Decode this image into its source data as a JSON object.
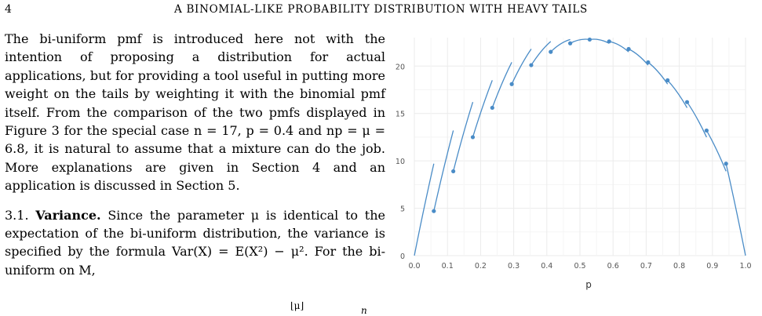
{
  "header": {
    "page_number": "4",
    "running_title": "A BINOMIAL-LIKE PROBABILITY DISTRIBUTION WITH HEAVY TAILS"
  },
  "body": {
    "paragraph1": "The bi-uniform pmf is introduced here not with the intention of proposing a distribution for actual applications, but for providing a tool useful in putting more weight on the tails by weighting it with the binomial pmf itself. From the comparison of the two pmfs displayed in Figure 3 for the special case n = 17, p = 0.4 and np = μ = 6.8, it is natural to assume that a mixture can do the job. More explanations are given in Section 4 and an application is discussed in Section 5.",
    "p2_number": "3.1.",
    "p2_heading": "Variance.",
    "p2_text": " Since the parameter μ is identical to the expectation of the bi-uniform distribution, the variance is specified by the formula Var(X) = E(X²) − μ². For the bi-uniform on M,",
    "eq_floor_mu": "⌊μ⌋",
    "eq_n": "n"
  },
  "chart_data": {
    "type": "line",
    "xlabel": "p",
    "ylabel": "",
    "xlim": [
      0.0,
      1.0
    ],
    "ylim": [
      0,
      23
    ],
    "x_ticks": [
      "0.0",
      "0.1",
      "0.2",
      "0.3",
      "0.4",
      "0.5",
      "0.6",
      "0.7",
      "0.8",
      "0.9",
      "1.0"
    ],
    "y_ticks": [
      "0",
      "5",
      "10",
      "15",
      "20"
    ],
    "grid": true,
    "points": [
      {
        "x": 0.0588,
        "y": 4.7
      },
      {
        "x": 0.1176,
        "y": 8.9
      },
      {
        "x": 0.1765,
        "y": 12.5
      },
      {
        "x": 0.2353,
        "y": 15.6
      },
      {
        "x": 0.2941,
        "y": 18.1
      },
      {
        "x": 0.3529,
        "y": 20.1
      },
      {
        "x": 0.4118,
        "y": 21.5
      },
      {
        "x": 0.4706,
        "y": 22.4
      },
      {
        "x": 0.5294,
        "y": 22.8
      },
      {
        "x": 0.5882,
        "y": 22.6
      },
      {
        "x": 0.6471,
        "y": 21.8
      },
      {
        "x": 0.7059,
        "y": 20.4
      },
      {
        "x": 0.7647,
        "y": 18.5
      },
      {
        "x": 0.8235,
        "y": 16.2
      },
      {
        "x": 0.8824,
        "y": 13.2
      },
      {
        "x": 0.9412,
        "y": 9.7
      }
    ],
    "segments": [
      {
        "x": [
          0.0,
          0.0588
        ],
        "y": [
          0.0,
          9.7
        ]
      },
      {
        "x": [
          0.0588,
          0.1176
        ],
        "y": [
          4.7,
          13.2
        ]
      },
      {
        "x": [
          0.1176,
          0.1765
        ],
        "y": [
          8.9,
          16.2
        ]
      },
      {
        "x": [
          0.1765,
          0.2353
        ],
        "y": [
          12.5,
          18.5
        ]
      },
      {
        "x": [
          0.2353,
          0.2941
        ],
        "y": [
          15.6,
          20.4
        ]
      },
      {
        "x": [
          0.2941,
          0.3529
        ],
        "y": [
          18.1,
          21.8
        ]
      },
      {
        "x": [
          0.3529,
          0.4118
        ],
        "y": [
          20.1,
          22.6
        ]
      },
      {
        "x": [
          0.4118,
          0.4706
        ],
        "y": [
          21.5,
          22.8
        ]
      },
      {
        "x": [
          0.4706,
          0.5294
        ],
        "y": [
          22.4,
          22.8
        ]
      },
      {
        "x": [
          0.5294,
          0.5882
        ],
        "y": [
          22.8,
          22.4
        ]
      },
      {
        "x": [
          0.5882,
          0.6471
        ],
        "y": [
          22.6,
          21.5
        ]
      },
      {
        "x": [
          0.6471,
          0.7059
        ],
        "y": [
          21.8,
          20.1
        ]
      },
      {
        "x": [
          0.7059,
          0.7647
        ],
        "y": [
          20.4,
          18.1
        ]
      },
      {
        "x": [
          0.7647,
          0.8235
        ],
        "y": [
          18.5,
          15.6
        ]
      },
      {
        "x": [
          0.8235,
          0.8824
        ],
        "y": [
          16.2,
          12.5
        ]
      },
      {
        "x": [
          0.8824,
          0.9412
        ],
        "y": [
          13.2,
          8.9
        ]
      },
      {
        "x": [
          0.9412,
          1.0
        ],
        "y": [
          9.7,
          0.0
        ]
      }
    ],
    "line_color": "#4a8cc7",
    "point_color": "#4a8cc7",
    "grid_color": "#ebebeb"
  }
}
